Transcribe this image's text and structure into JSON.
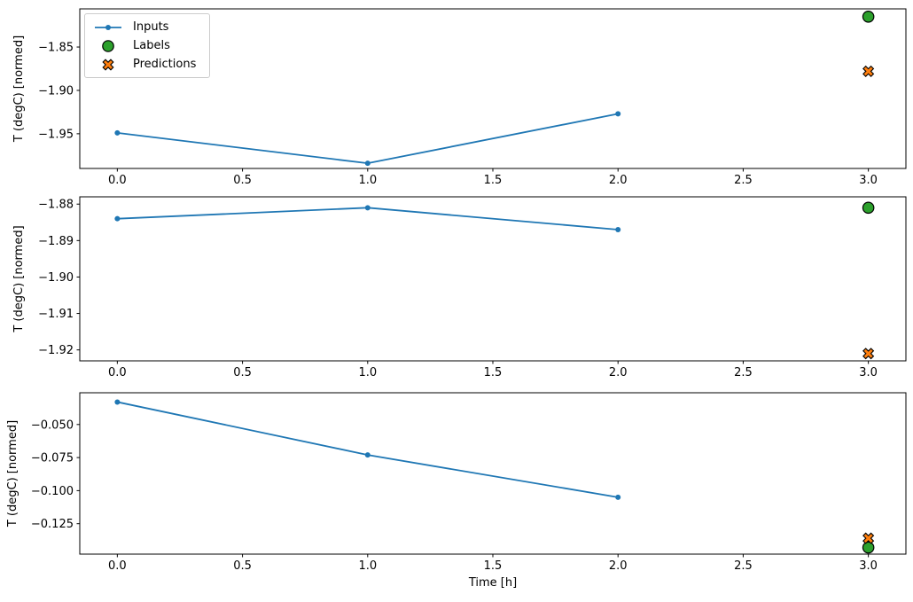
{
  "figure": {
    "xlabel": "Time [h]",
    "ylabel": "T (degC) [normed]",
    "legend": [
      {
        "label": "Inputs",
        "marker": "line-dot",
        "color": "#1f77b4"
      },
      {
        "label": "Labels",
        "marker": "circle",
        "color": "#2ca02c"
      },
      {
        "label": "Predictions",
        "marker": "x-cross",
        "color": "#ff7f0e"
      }
    ],
    "colors": {
      "inputs": "#1f77b4",
      "labels": "#2ca02c",
      "predictions": "#ff7f0e",
      "axis": "#000000",
      "legend_border": "#cccccc"
    }
  },
  "chart_data": [
    {
      "type": "line",
      "title": "",
      "xlabel": "",
      "ylabel": "T (degC) [normed]",
      "xlim": [
        -0.15,
        3.15
      ],
      "ylim": [
        -1.99,
        -1.806
      ],
      "xticks": [
        0.0,
        0.5,
        1.0,
        1.5,
        2.0,
        2.5,
        3.0
      ],
      "xtick_labels": [
        "0.0",
        "0.5",
        "1.0",
        "1.5",
        "2.0",
        "2.5",
        "3.0"
      ],
      "yticks": [
        -1.85,
        -1.9,
        -1.95
      ],
      "ytick_labels": [
        "−1.85",
        "−1.90",
        "−1.95"
      ],
      "grid": false,
      "legend_position": "upper left",
      "series": [
        {
          "name": "Inputs",
          "kind": "line",
          "marker": "dot",
          "color": "#1f77b4",
          "x": [
            0,
            1,
            2
          ],
          "y": [
            -1.949,
            -1.984,
            -1.927
          ]
        },
        {
          "name": "Labels",
          "kind": "scatter",
          "marker": "circle",
          "color": "#2ca02c",
          "x": [
            3
          ],
          "y": [
            -1.815
          ]
        },
        {
          "name": "Predictions",
          "kind": "scatter",
          "marker": "x",
          "color": "#ff7f0e",
          "x": [
            3
          ],
          "y": [
            -1.878
          ]
        }
      ]
    },
    {
      "type": "line",
      "title": "",
      "xlabel": "",
      "ylabel": "T (degC) [normed]",
      "xlim": [
        -0.15,
        3.15
      ],
      "ylim": [
        -1.923,
        -1.878
      ],
      "xticks": [
        0.0,
        0.5,
        1.0,
        1.5,
        2.0,
        2.5,
        3.0
      ],
      "xtick_labels": [
        "0.0",
        "0.5",
        "1.0",
        "1.5",
        "2.0",
        "2.5",
        "3.0"
      ],
      "yticks": [
        -1.88,
        -1.89,
        -1.9,
        -1.91,
        -1.92
      ],
      "ytick_labels": [
        "−1.88",
        "−1.89",
        "−1.90",
        "−1.91",
        "−1.92"
      ],
      "grid": false,
      "legend_position": "none",
      "series": [
        {
          "name": "Inputs",
          "kind": "line",
          "marker": "dot",
          "color": "#1f77b4",
          "x": [
            0,
            1,
            2
          ],
          "y": [
            -1.884,
            -1.881,
            -1.887
          ]
        },
        {
          "name": "Labels",
          "kind": "scatter",
          "marker": "circle",
          "color": "#2ca02c",
          "x": [
            3
          ],
          "y": [
            -1.881
          ]
        },
        {
          "name": "Predictions",
          "kind": "scatter",
          "marker": "x",
          "color": "#ff7f0e",
          "x": [
            3
          ],
          "y": [
            -1.921
          ]
        }
      ]
    },
    {
      "type": "line",
      "title": "",
      "xlabel": "Time [h]",
      "ylabel": "T (degC) [normed]",
      "xlim": [
        -0.15,
        3.15
      ],
      "ylim": [
        -0.148,
        -0.026
      ],
      "xticks": [
        0.0,
        0.5,
        1.0,
        1.5,
        2.0,
        2.5,
        3.0
      ],
      "xtick_labels": [
        "0.0",
        "0.5",
        "1.0",
        "1.5",
        "2.0",
        "2.5",
        "3.0"
      ],
      "yticks": [
        -0.05,
        -0.075,
        -0.1,
        -0.125
      ],
      "ytick_labels": [
        "−0.050",
        "−0.075",
        "−0.100",
        "−0.125"
      ],
      "grid": false,
      "legend_position": "none",
      "series": [
        {
          "name": "Inputs",
          "kind": "line",
          "marker": "dot",
          "color": "#1f77b4",
          "x": [
            0,
            1,
            2
          ],
          "y": [
            -0.033,
            -0.073,
            -0.105
          ]
        },
        {
          "name": "Labels",
          "kind": "scatter",
          "marker": "circle",
          "color": "#2ca02c",
          "x": [
            3
          ],
          "y": [
            -0.143
          ]
        },
        {
          "name": "Predictions",
          "kind": "scatter",
          "marker": "x",
          "color": "#ff7f0e",
          "x": [
            3
          ],
          "y": [
            -0.136
          ]
        }
      ]
    }
  ]
}
